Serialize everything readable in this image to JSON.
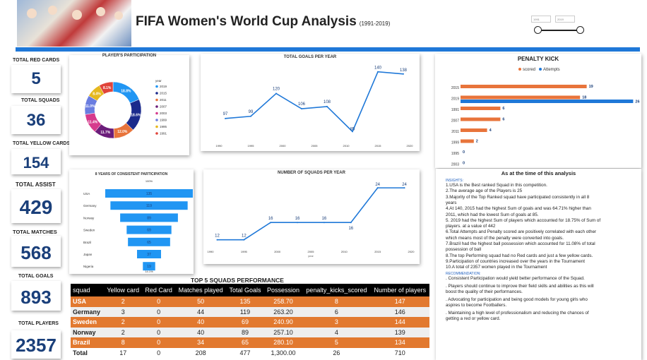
{
  "header": {
    "title": "FIFA Women's World Cup Analysis",
    "subtitle": "(1991-2019)"
  },
  "year_slider": {
    "start": "1991",
    "end": "2019"
  },
  "kpis": [
    {
      "label": "TOTAL RED CARDS",
      "value": "5"
    },
    {
      "label": "TOTAL SQUADS",
      "value": "36"
    },
    {
      "label": "TOTAL YELLOW CARDS",
      "value": "154"
    },
    {
      "label": "TOTAL ASSIST",
      "value": "429"
    },
    {
      "label": "TOTAL MATCHES",
      "value": "568"
    },
    {
      "label": "TOTAL GOALS",
      "value": "893"
    },
    {
      "label": "TOTAL PLAYERS",
      "value": "2357"
    }
  ],
  "chart_data": [
    {
      "type": "pie",
      "title": "PLAYER'S PARTICIPATION",
      "legend_title": "year",
      "slices": [
        {
          "label": "2019",
          "value": 18.8,
          "color": "#2196f3"
        },
        {
          "label": "2015",
          "value": 18.6,
          "color": "#1a2a8c"
        },
        {
          "label": "2011",
          "value": 12.0,
          "color": "#e8743b"
        },
        {
          "label": "2007",
          "value": 11.7,
          "color": "#6b1d7a"
        },
        {
          "label": "2003",
          "value": 11.4,
          "color": "#d63a8c"
        },
        {
          "label": "1999",
          "value": 11.0,
          "color": "#6a7de0"
        },
        {
          "label": "1995",
          "value": 8.4,
          "color": "#e6b81e"
        },
        {
          "label": "1991",
          "value": 8.1,
          "color": "#e0443a"
        }
      ]
    },
    {
      "type": "line",
      "title": "TOTAL GOALS PER YEAR",
      "x": [
        1991,
        1995,
        1999,
        2003,
        2007,
        2011,
        2015,
        2019
      ],
      "y": [
        97,
        99,
        120,
        106,
        108,
        85,
        140,
        138
      ],
      "xticks": [
        "1990",
        "1995",
        "2000",
        "2005",
        "2010",
        "2015",
        "2020"
      ],
      "color": "#1f78d8"
    },
    {
      "type": "bar",
      "title": "PENALTY KICK",
      "legend": [
        "scored",
        "Attempts"
      ],
      "colors": [
        "#e8743b",
        "#1f78d8"
      ],
      "categories": [
        "2015",
        "2019",
        "1991",
        "2007",
        "2011",
        "1999",
        "1995",
        "2003"
      ],
      "series": [
        {
          "name": "scored",
          "values": [
            19,
            18,
            6,
            6,
            4,
            2,
            0,
            0
          ]
        },
        {
          "name": "Attempts",
          "values": [
            null,
            26,
            null,
            null,
            null,
            null,
            null,
            null
          ]
        }
      ]
    },
    {
      "type": "bar",
      "title": "8 YEARS OF CONSISTENT PARTICIPATION",
      "top_label": "100%",
      "bottom_label": "14.1%",
      "categories": [
        "USA",
        "Germany",
        "Norway",
        "Sweden",
        "Brazil",
        "Japan",
        "Nigeria"
      ],
      "values": [
        135,
        119,
        89,
        69,
        65,
        37,
        19
      ],
      "color": "#2196f3"
    },
    {
      "type": "line",
      "title": "NUMBER OF SQUADS PER YEAR",
      "x": [
        1991,
        1995,
        1999,
        2003,
        2007,
        2011,
        2015,
        2019
      ],
      "y": [
        12,
        12,
        16,
        16,
        16,
        16,
        24,
        24
      ],
      "xticks": [
        "1990",
        "1995",
        "2000",
        "2005",
        "2010",
        "2015",
        "2020"
      ],
      "xlabel": "year",
      "color": "#1f78d8"
    }
  ],
  "squads_table": {
    "title": "TOP 5 SQUADS PERFORMANCE",
    "headers": [
      "squad",
      "Yellow card",
      "Red Card",
      "Matches played",
      "Total Goals",
      "Possession",
      "penalty_kicks_scored",
      "Number of players"
    ],
    "rows": [
      [
        "USA",
        "2",
        "0",
        "50",
        "135",
        "258.70",
        "8",
        "147"
      ],
      [
        "Germany",
        "3",
        "0",
        "44",
        "119",
        "263.20",
        "6",
        "146"
      ],
      [
        "Sweden",
        "2",
        "0",
        "40",
        "69",
        "240.90",
        "3",
        "144"
      ],
      [
        "Norway",
        "2",
        "0",
        "40",
        "89",
        "257.10",
        "4",
        "139"
      ],
      [
        "Brazil",
        "8",
        "0",
        "34",
        "65",
        "280.10",
        "5",
        "134"
      ]
    ],
    "total": [
      "Total",
      "17",
      "0",
      "208",
      "477",
      "1,300.00",
      "26",
      "710"
    ]
  },
  "insights": {
    "heading": "As at the time of this analysis",
    "label": "INSIGHTS:",
    "lines": [
      "1.USA is the Best ranked Squad in this competition.",
      "2.The average age of the Players is 25",
      "3.Majority of the Top Ranked squad have participated  consistently in all 8",
      "years",
      "4.At 140, 2015 had the highest Sum of goals and was 64.71% higher than",
      "2011, which had the lowest Sum of goals at 85.",
      "5. 2019 had the highest Sum of players which accounted for 18.75% of Sum of",
      "players. at a value of  442",
      "6.Total Attempts and Penalty scored are positively correlated with each other",
      "which means most of the penalty were converted into goals.",
      "7.Brazil had the highest ball possession which accounted for 11.08% of total",
      "possession of ball",
      "8.The top Performing squad had no Red cards and just a few yellow cards.",
      "9.Participation of countries increased over the years in the Tournament",
      "10.A total of 2357 women played in the Tournament"
    ],
    "rec_label": "RECOMMENDATION:",
    "recommendations": [
      ". Consistent Participation would yield better performance of the Squad.",
      ". Players should continue to improve their field skills  and abilities as this will",
      "boost the quality of their performances.",
      ". Advocating for participation and being good models  for young girls who",
      "aspires to become Footballers.",
      ". Maintaining a high level of professionalism and reducing the chances of",
      "getting a red or yellow card."
    ]
  }
}
